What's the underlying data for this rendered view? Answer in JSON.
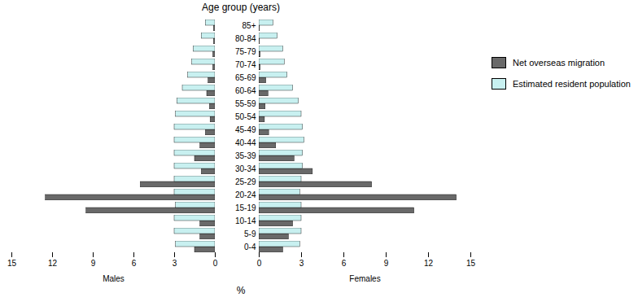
{
  "chart_data": [
    {
      "type": "bar",
      "orientation": "horizontal",
      "xlabel": "Males",
      "annotations": [
        "%"
      ],
      "categories": [
        "0-4",
        "5-9",
        "10-14",
        "15-19",
        "20-24",
        "25-29",
        "30-34",
        "35-39",
        "40-44",
        "45-49",
        "50-54",
        "55-59",
        "60-64",
        "65-69",
        "70-74",
        "75-79",
        "80-84",
        "85+"
      ],
      "series": [
        {
          "name": "Net overseas migration",
          "color": "#696969",
          "values": [
            1.5,
            1.1,
            1.1,
            9.5,
            12.5,
            5.5,
            1.0,
            1.5,
            1.1,
            0.7,
            0.35,
            0.4,
            0.6,
            0.5,
            0.15,
            0.15,
            0.1,
            0.1
          ]
        },
        {
          "name": "Estimated resident population",
          "color": "#c8f0f0",
          "values": [
            2.9,
            3.0,
            3.0,
            2.9,
            3.0,
            3.0,
            3.0,
            3.0,
            3.0,
            3.0,
            2.9,
            2.8,
            2.4,
            2.0,
            1.7,
            1.6,
            1.0,
            0.7
          ]
        }
      ],
      "xlim": [
        15,
        0
      ],
      "xticks": [
        15,
        12,
        9,
        6,
        3,
        0
      ],
      "tick_labels": "x"
    },
    {
      "type": "bar",
      "orientation": "horizontal",
      "xlabel": "Females",
      "ylabel": "Age group (years)",
      "categories": [
        "0-4",
        "5-9",
        "10-14",
        "15-19",
        "20-24",
        "25-29",
        "30-34",
        "35-39",
        "40-44",
        "45-49",
        "50-54",
        "55-59",
        "60-64",
        "65-69",
        "70-74",
        "75-79",
        "80-84",
        "85+"
      ],
      "series": [
        {
          "name": "Net overseas migration",
          "color": "#696969",
          "values": [
            1.7,
            2.1,
            2.4,
            11.0,
            14.0,
            8.0,
            3.8,
            2.5,
            1.2,
            0.7,
            0.4,
            0.45,
            0.65,
            0.5,
            0.1,
            0.1,
            0.05,
            0.05
          ]
        },
        {
          "name": "Estimated resident population",
          "color": "#c8f0f0",
          "values": [
            2.9,
            3.0,
            3.0,
            3.0,
            2.9,
            3.0,
            3.1,
            3.1,
            3.2,
            3.1,
            3.0,
            2.8,
            2.4,
            2.0,
            1.8,
            1.7,
            1.3,
            1.0
          ]
        }
      ],
      "xlim": [
        0,
        15
      ],
      "xticks": [
        0,
        3,
        6,
        9,
        12,
        15
      ],
      "legend": "right"
    }
  ]
}
